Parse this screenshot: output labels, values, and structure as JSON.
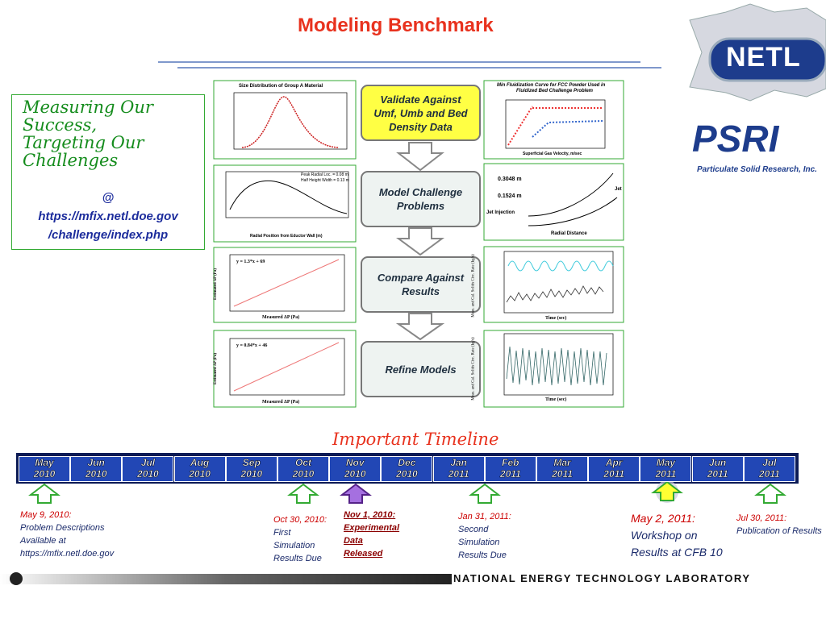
{
  "header": {
    "title": "Modeling Benchmark"
  },
  "sidebar": {
    "heading": [
      "Measuring Our",
      "Success,",
      "Targeting Our",
      "Challenges"
    ],
    "at": "@",
    "url": [
      "https://mfix.netl.doe.gov",
      "/challenge/index.php"
    ]
  },
  "logos": {
    "netl": "NETL",
    "psri": "PSRI",
    "psri_name": "Particulate Solid Research, Inc."
  },
  "flow": [
    {
      "text": "Validate Against Umf, Umb and Bed Density Data"
    },
    {
      "text": "Model Challenge Problems"
    },
    {
      "text": "Compare Against Results"
    },
    {
      "text": "Refine Models"
    }
  ],
  "panels": {
    "size_title": "Size Distribution of Group A Material",
    "radial_xlabel": "Radial Position from Eductor Wall (m)",
    "radial_legend": [
      "Peak Radial Loc. = 0.08 m",
      "Half Height Width = 0.13 m"
    ],
    "fit1": "y = 1.3*x + 69",
    "fit2": "y = 0.84*x + 46",
    "measured": "Measured ΔP (Pa)",
    "estimated": "Estimated ΔP (Pa)",
    "minfluid_title": [
      "Min Fluidization Curve for FCC Powder Used in",
      "Fluidized Bed Challenge Problem"
    ],
    "minfluid_xlabel": "Superficial Gas Velocity, m/sec",
    "jet": {
      "h1": "0.3048 m",
      "h2": "0.1524 m",
      "injection": "Jet Injection",
      "radial": "Radial Distance",
      "jet": "Jet"
    },
    "time": "Time (sec)",
    "circ": "Meas. and Cal. Solids Circ. Rate (kg/s)"
  },
  "timeline": {
    "title": "Important Timeline",
    "months": [
      [
        "May",
        "2010"
      ],
      [
        "Jun",
        "2010"
      ],
      [
        "Jul",
        "2010"
      ],
      [
        "Aug",
        "2010"
      ],
      [
        "Sep",
        "2010"
      ],
      [
        "Oct",
        "2010"
      ],
      [
        "Nov",
        "2010"
      ],
      [
        "Dec",
        "2010"
      ],
      [
        "Jan",
        "2011"
      ],
      [
        "Feb",
        "2011"
      ],
      [
        "Mar",
        "2011"
      ],
      [
        "Apr",
        "2011"
      ],
      [
        "May",
        "2011"
      ],
      [
        "Jun",
        "2011"
      ],
      [
        "Jul",
        "2011"
      ]
    ],
    "events": [
      {
        "date": "May 9, 2010:",
        "lines": [
          "Problem Descriptions",
          "Available at",
          "https://mfix.netl.doe.gov"
        ]
      },
      {
        "date": "Oct 30, 2010:",
        "lines": [
          "First",
          "Simulation",
          "Results Due"
        ]
      },
      {
        "date": "Nov 1, 2010:",
        "lines": [
          "Experimental",
          "Data",
          "Released"
        ]
      },
      {
        "date": "Jan  31, 2011:",
        "lines": [
          "Second",
          "Simulation",
          "Results Due"
        ]
      },
      {
        "date": "May 2, 2011:",
        "lines": [
          "Workshop on",
          "Results at  CFB 10"
        ]
      },
      {
        "date": "Jul 30, 2011:",
        "lines": [
          "Publication of  Results"
        ]
      }
    ]
  },
  "footer": {
    "lab": "NATIONAL ENERGY TECHNOLOGY LABORATORY"
  }
}
